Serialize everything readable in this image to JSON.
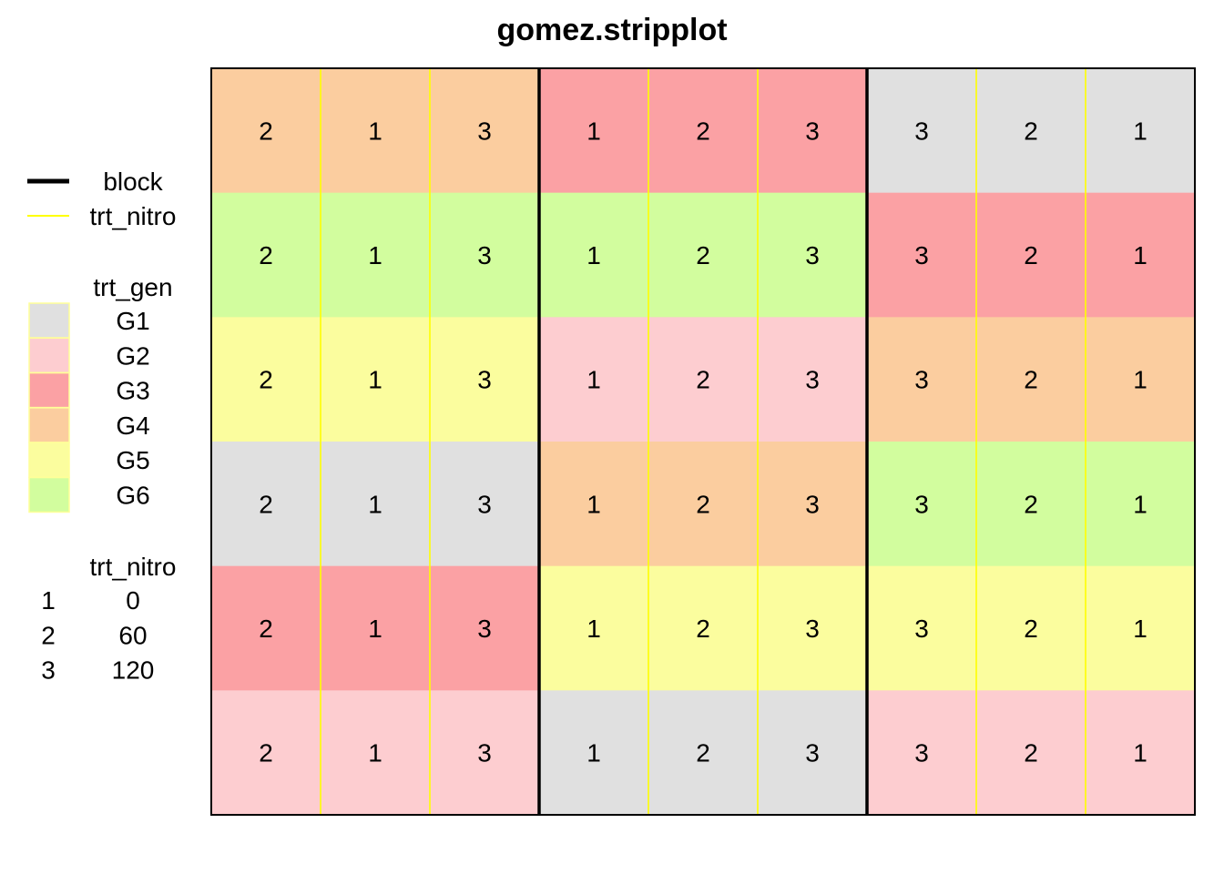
{
  "chart_data": {
    "type": "heatmap",
    "title": "gomez.stripplot",
    "rows": 6,
    "cols": 9,
    "colors": {
      "G1": "#E0E0E0",
      "G2": "#FDCDD0",
      "G3": "#FBA1A4",
      "G4": "#FBCD9F",
      "G5": "#FBFD9E",
      "G6": "#D2FD9E",
      "block_line": "#000000",
      "trt_nitro_line": "#FFFF00"
    },
    "blocks": [
      {
        "gen_rows": [
          "G4",
          "G6",
          "G5",
          "G1",
          "G3",
          "G2"
        ],
        "nitro_cols": [
          "2",
          "1",
          "3"
        ]
      },
      {
        "gen_rows": [
          "G3",
          "G6",
          "G2",
          "G4",
          "G5",
          "G1"
        ],
        "nitro_cols": [
          "1",
          "2",
          "3"
        ]
      },
      {
        "gen_rows": [
          "G1",
          "G3",
          "G4",
          "G6",
          "G5",
          "G2"
        ],
        "nitro_cols": [
          "3",
          "2",
          "1"
        ]
      }
    ],
    "legend": {
      "lines": [
        {
          "label": "block",
          "key": "block_line"
        },
        {
          "label": "trt_nitro",
          "key": "trt_nitro_line"
        }
      ],
      "gen_title": "trt_gen",
      "gen_items": [
        "G1",
        "G2",
        "G3",
        "G4",
        "G5",
        "G6"
      ],
      "nitro_title": "trt_nitro",
      "nitro_items": [
        {
          "code": "1",
          "value": "0"
        },
        {
          "code": "2",
          "value": "60"
        },
        {
          "code": "3",
          "value": "120"
        }
      ]
    }
  }
}
